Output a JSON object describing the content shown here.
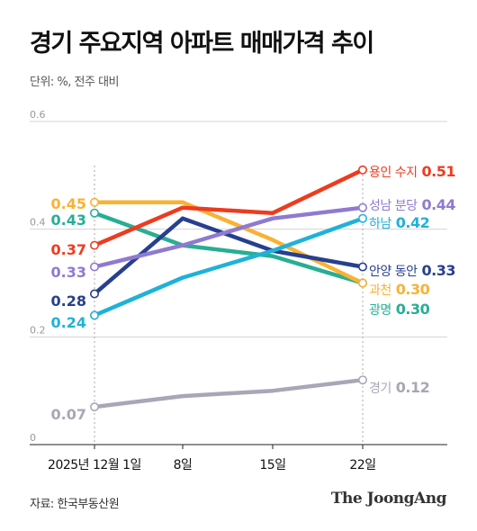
{
  "title": "경기 주요지역 아파트 매매가격 추이",
  "unit_label": "단위: %, 전주 대비",
  "source": "자료: 한국부동산원",
  "brand": "The JoongAng",
  "chart_data": {
    "type": "line",
    "x": [
      "2025년 12월 1일",
      "8일",
      "15일",
      "22일"
    ],
    "ylim": [
      0,
      0.6
    ],
    "yticks": [
      "0",
      "0.2",
      "0.4",
      "0.6"
    ],
    "grid": true,
    "series": [
      {
        "name": "용인 수지",
        "values": [
          0.37,
          0.44,
          0.43,
          0.51
        ],
        "color": "#ee3b1f",
        "start_label": "0.37",
        "end_value": "0.51"
      },
      {
        "name": "성남 분당",
        "values": [
          0.33,
          0.37,
          0.42,
          0.44
        ],
        "color": "#8f7ad1",
        "start_label": "0.33",
        "end_value": "0.44"
      },
      {
        "name": "하남",
        "values": [
          0.24,
          0.31,
          0.36,
          0.42
        ],
        "color": "#1fb2d8",
        "start_label": "0.24",
        "end_value": "0.42"
      },
      {
        "name": "안양 동안",
        "values": [
          0.28,
          0.42,
          0.36,
          0.33
        ],
        "color": "#263f8f",
        "start_label": "0.28",
        "end_value": "0.33"
      },
      {
        "name": "과천",
        "values": [
          0.45,
          0.45,
          0.38,
          0.3
        ],
        "color": "#f9b233",
        "start_label": "0.45",
        "end_value": "0.30"
      },
      {
        "name": "광명",
        "values": [
          0.43,
          0.37,
          0.35,
          0.3
        ],
        "color": "#27ae94",
        "start_label": "0.43",
        "end_value": "0.30"
      },
      {
        "name": "경기",
        "values": [
          0.07,
          0.09,
          0.1,
          0.12
        ],
        "color": "#a9a6b6",
        "start_label": "0.07",
        "end_value": "0.12"
      }
    ]
  }
}
